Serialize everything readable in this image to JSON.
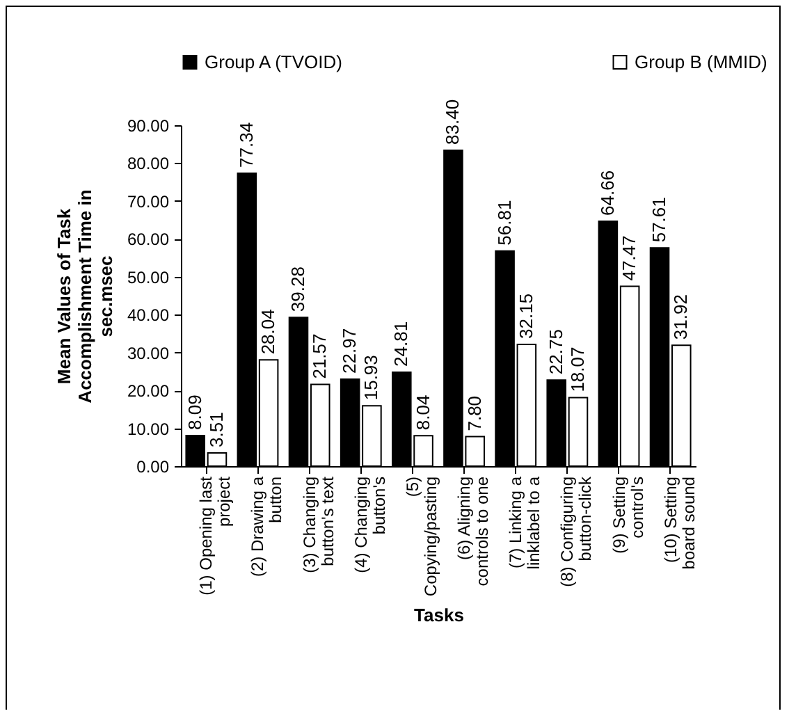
{
  "chart_data": {
    "type": "bar",
    "xlabel": "Tasks",
    "ylabel": "Mean Values of Task Accomplishment Time in sec.msec",
    "categories": [
      "(1) Opening last project",
      "(2) Drawing a button",
      "(3) Changing button's text",
      "(4) Changing button's",
      "(5) Copying/pasting",
      "(6) Aligning controls to one",
      "(7) Linking a linklabel to a",
      "(8) Configuring button-click",
      "(9) Setting control's",
      "(10) Setting board sound"
    ],
    "series": [
      {
        "name": "Group A (TVOID)",
        "color": "#000000",
        "values": [
          8.09,
          77.34,
          39.28,
          22.97,
          24.81,
          83.4,
          56.81,
          22.75,
          64.66,
          57.61
        ],
        "value_labels": [
          "8.09",
          "77.34",
          "39.28",
          "22.97",
          "24.81",
          "83.40",
          "56.81",
          "22.75",
          "64.66",
          "57.61"
        ]
      },
      {
        "name": "Group B (MMID)",
        "color": "#ffffff",
        "values": [
          3.51,
          28.04,
          21.57,
          15.93,
          8.04,
          7.8,
          32.15,
          18.07,
          47.47,
          31.92
        ],
        "value_labels": [
          "3.51",
          "28.04",
          "21.57",
          "15.93",
          "8.04",
          "7.80",
          "32.15",
          "18.07",
          "47.47",
          "31.92"
        ]
      }
    ],
    "ylim": [
      0,
      90
    ],
    "yticks": [
      {
        "value": 0,
        "label": "0.00"
      },
      {
        "value": 10,
        "label": "10.00"
      },
      {
        "value": 20,
        "label": "20.00"
      },
      {
        "value": 30,
        "label": "30.00"
      },
      {
        "value": 40,
        "label": "40.00"
      },
      {
        "value": 50,
        "label": "50.00"
      },
      {
        "value": 60,
        "label": "60.00"
      },
      {
        "value": 70,
        "label": "70.00"
      },
      {
        "value": 80,
        "label": "80.00"
      },
      {
        "value": 90,
        "label": "90.00"
      }
    ],
    "grid": false,
    "legend": "top"
  }
}
